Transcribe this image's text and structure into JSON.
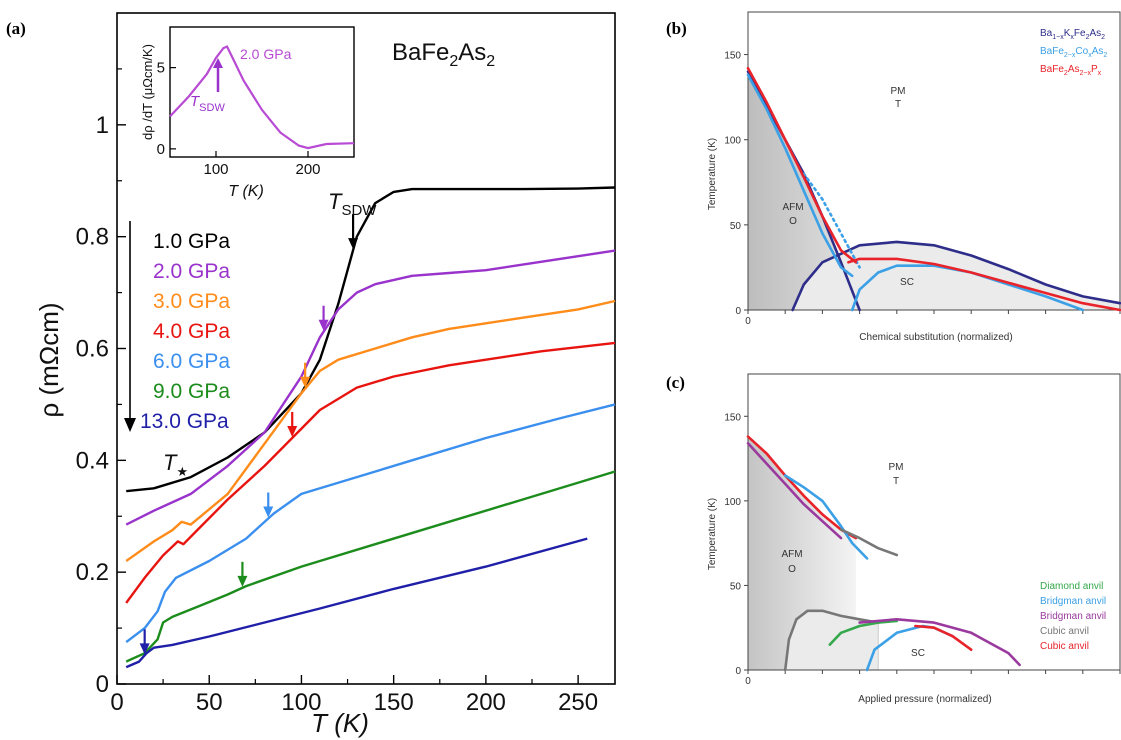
{
  "panels": [
    {
      "id": "a",
      "panel_label": "(a)",
      "compound": "BaFe₂As₂",
      "xlabel": "T (K)",
      "ylabel": "ρ (mΩcm)",
      "xticks": [
        "0",
        "50",
        "100",
        "150",
        "200",
        "250"
      ],
      "yticks": [
        "0",
        "0.2",
        "0.4",
        "0.6",
        "0.8",
        "1"
      ],
      "marker_tsdw": "T",
      "marker_tsdw_sub": "SDW",
      "marker_tstar": "T",
      "marker_tstar_sub": "★",
      "inset": {
        "ylabel": "dρ /dT (μΩcm/K)",
        "xlabel": "T (K)",
        "label": "2.0 GPa",
        "marker": "T",
        "marker_sub": "SDW",
        "xticks": [
          "100",
          "200"
        ],
        "yticks": [
          "0",
          "5"
        ]
      }
    },
    {
      "id": "b",
      "panel_label": "(b)",
      "xlabel": "Chemical substitution (normalized)",
      "ylabel": "Temperature (K)",
      "xticks": [
        "0"
      ],
      "yticks": [
        "0",
        "50",
        "100",
        "150"
      ],
      "labels": {
        "pm": "PM",
        "pm_sub": "T",
        "afm": "AFM",
        "afm_sub": "O",
        "sc": "SC"
      }
    },
    {
      "id": "c",
      "panel_label": "(c)",
      "xlabel": "Applied pressure (normalized)",
      "ylabel": "Temperature (K)",
      "xticks": [
        "0"
      ],
      "yticks": [
        "0",
        "50",
        "100",
        "150"
      ],
      "labels": {
        "pm": "PM",
        "pm_sub": "T",
        "afm": "AFM",
        "afm_sub": "O",
        "sc": "SC"
      }
    }
  ],
  "chart_data": [
    {
      "type": "line",
      "panel": "a",
      "xlim": [
        0,
        270
      ],
      "ylim": [
        0,
        1.2
      ],
      "series": [
        {
          "name": "1.0 GPa",
          "color": "#000000",
          "x": [
            5,
            20,
            40,
            60,
            80,
            100,
            110,
            120,
            130,
            140,
            150,
            160,
            180,
            200,
            220,
            250,
            270
          ],
          "y": [
            0.345,
            0.35,
            0.37,
            0.405,
            0.45,
            0.52,
            0.58,
            0.68,
            0.8,
            0.86,
            0.88,
            0.885,
            0.885,
            0.885,
            0.885,
            0.886,
            0.888
          ],
          "arrow_x": 128
        },
        {
          "name": "2.0 GPa",
          "color": "#9933cc",
          "x": [
            5,
            20,
            40,
            60,
            80,
            100,
            110,
            120,
            130,
            140,
            160,
            180,
            200,
            220,
            250,
            270
          ],
          "y": [
            0.285,
            0.31,
            0.34,
            0.39,
            0.45,
            0.55,
            0.62,
            0.67,
            0.7,
            0.715,
            0.73,
            0.735,
            0.74,
            0.75,
            0.765,
            0.775
          ],
          "arrow_x": 112
        },
        {
          "name": "3.0 GPa",
          "color": "#ff8c1a",
          "x": [
            5,
            20,
            30,
            35,
            40,
            60,
            80,
            100,
            110,
            120,
            140,
            160,
            180,
            200,
            220,
            250,
            270
          ],
          "y": [
            0.22,
            0.255,
            0.275,
            0.29,
            0.285,
            0.34,
            0.43,
            0.52,
            0.56,
            0.58,
            0.6,
            0.62,
            0.635,
            0.645,
            0.655,
            0.67,
            0.685
          ],
          "arrow_x": 102
        },
        {
          "name": "4.0 GPa",
          "color": "#e8140f",
          "x": [
            5,
            15,
            25,
            33,
            36,
            45,
            60,
            80,
            95,
            110,
            130,
            150,
            180,
            200,
            230,
            270
          ],
          "y": [
            0.145,
            0.19,
            0.23,
            0.255,
            0.25,
            0.28,
            0.33,
            0.39,
            0.44,
            0.49,
            0.53,
            0.55,
            0.57,
            0.58,
            0.595,
            0.61
          ],
          "arrow_x": 95
        },
        {
          "name": "6.0 GPa",
          "color": "#3b8fee",
          "x": [
            5,
            15,
            22,
            26,
            32,
            50,
            70,
            85,
            100,
            130,
            160,
            200,
            240,
            270
          ],
          "y": [
            0.075,
            0.1,
            0.13,
            0.165,
            0.19,
            0.22,
            0.26,
            0.305,
            0.34,
            0.37,
            0.4,
            0.44,
            0.475,
            0.5
          ],
          "arrow_x": 82
        },
        {
          "name": "9.0 GPa",
          "color": "#1c8c1c",
          "x": [
            5,
            15,
            22,
            25,
            30,
            45,
            60,
            70,
            100,
            140,
            180,
            220,
            270
          ],
          "y": [
            0.04,
            0.055,
            0.08,
            0.11,
            0.12,
            0.14,
            0.16,
            0.175,
            0.21,
            0.25,
            0.29,
            0.33,
            0.38
          ],
          "arrow_x": 68
        },
        {
          "name": "13.0 GPa",
          "color": "#1f1fa8",
          "x": [
            5,
            12,
            16,
            20,
            30,
            50,
            80,
            110,
            150,
            200,
            255
          ],
          "y": [
            0.03,
            0.04,
            0.055,
            0.065,
            0.07,
            0.085,
            0.11,
            0.135,
            0.17,
            0.21,
            0.26
          ],
          "arrow_x": 15
        }
      ]
    },
    {
      "type": "line",
      "panel": "a-inset",
      "xlim": [
        50,
        250
      ],
      "ylim": [
        -0.5,
        7.5
      ],
      "series": [
        {
          "name": "2.0 GPa",
          "color": "#b84ad4",
          "x": [
            50,
            70,
            90,
            100,
            108,
            112,
            118,
            130,
            150,
            170,
            190,
            200,
            220,
            250
          ],
          "y": [
            2.0,
            3.2,
            4.6,
            5.6,
            6.2,
            6.3,
            5.6,
            4.2,
            2.4,
            1.0,
            0.2,
            0.05,
            0.3,
            0.35
          ]
        }
      ]
    },
    {
      "type": "line",
      "panel": "b",
      "xlim": [
        0,
        1
      ],
      "ylim": [
        0,
        175
      ],
      "series": [
        {
          "name": "Ba₁₋ₓKₓFe₂As₂",
          "color": "#2e2e8a",
          "x": [
            0.0,
            0.05,
            0.1,
            0.15,
            0.2,
            0.25,
            0.3
          ],
          "y": [
            140,
            120,
            100,
            80,
            55,
            28,
            0
          ]
        },
        {
          "name": "Ba₁₋ₓKₓFe₂As₂",
          "color": "#2e2e8a",
          "x": [
            0.12,
            0.15,
            0.2,
            0.3,
            0.4,
            0.5,
            0.6,
            0.7,
            0.8,
            0.9,
            1.0
          ],
          "y": [
            0,
            15,
            28,
            38,
            40,
            38,
            32,
            24,
            15,
            8,
            4
          ]
        },
        {
          "name": "BaFe₂₋ₓCoₓAs₂",
          "color": "#3ba0e6",
          "x": [
            0.0,
            0.05,
            0.1,
            0.15,
            0.2,
            0.25,
            0.28
          ],
          "y": [
            138,
            118,
            95,
            70,
            45,
            25,
            20
          ]
        },
        {
          "name": "BaFe₂₋ₓCoₓAs₂",
          "color": "#3ba0e6",
          "x": [
            0.15,
            0.2,
            0.25,
            0.3
          ],
          "y": [
            80,
            65,
            45,
            25
          ]
        },
        {
          "name": "BaFe₂₋ₓCoₓAs₂",
          "color": "#3ba0e6",
          "x": [
            0.28,
            0.3,
            0.35,
            0.4,
            0.5,
            0.6,
            0.7,
            0.8,
            0.9
          ],
          "y": [
            0,
            12,
            22,
            26,
            26,
            22,
            15,
            8,
            0
          ]
        },
        {
          "name": "BaFe₂As₂₋ₓPₓ",
          "color": "#e8232a",
          "x": [
            0.0,
            0.05,
            0.1,
            0.15,
            0.2,
            0.25,
            0.29
          ],
          "y": [
            142,
            122,
            100,
            78,
            55,
            35,
            28
          ]
        },
        {
          "name": "BaFe₂As₂₋ₓPₓ",
          "color": "#e8232a",
          "x": [
            0.27,
            0.3,
            0.4,
            0.5,
            0.6,
            0.7,
            0.8,
            0.9,
            1.0
          ],
          "y": [
            28,
            30,
            30,
            27,
            22,
            16,
            10,
            4,
            0
          ]
        }
      ],
      "legend": [
        "Ba₁₋ₓKₓFe₂As₂",
        "BaFe₂₋ₓCoₓAs₂",
        "BaFe₂As₂₋ₓPₓ"
      ],
      "legend_colors": [
        "#2e2e8a",
        "#3ba0e6",
        "#e8232a"
      ]
    },
    {
      "type": "line",
      "panel": "c",
      "xlim": [
        0,
        1
      ],
      "ylim": [
        0,
        175
      ],
      "series": [
        {
          "name": "Cubic anvil",
          "color": "#e8232a",
          "x": [
            0.0,
            0.05,
            0.1,
            0.15,
            0.2,
            0.25,
            0.29
          ],
          "y": [
            138,
            128,
            115,
            103,
            92,
            83,
            78
          ]
        },
        {
          "name": "Bridgman anvil",
          "color": "#9a3a9e",
          "x": [
            0.0,
            0.05,
            0.1,
            0.15,
            0.2,
            0.25
          ],
          "y": [
            134,
            122,
            110,
            98,
            88,
            78
          ]
        },
        {
          "name": "Bridgman anvil",
          "color": "#3ba0e6",
          "x": [
            0.1,
            0.15,
            0.2,
            0.25,
            0.28,
            0.32
          ],
          "y": [
            115,
            108,
            100,
            85,
            75,
            66
          ]
        },
        {
          "name": "Cubic anvil",
          "color": "#777777",
          "x": [
            0.25,
            0.3,
            0.35,
            0.4
          ],
          "y": [
            83,
            78,
            72,
            68
          ]
        },
        {
          "name": "Cubic anvil",
          "color": "#777777",
          "x": [
            0.1,
            0.11,
            0.13,
            0.16,
            0.2,
            0.25,
            0.3,
            0.35
          ],
          "y": [
            0,
            18,
            30,
            35,
            35,
            32,
            30,
            28
          ]
        },
        {
          "name": "Diamond anvil",
          "color": "#34a84a",
          "x": [
            0.22,
            0.25,
            0.3,
            0.35,
            0.4
          ],
          "y": [
            15,
            22,
            26,
            28,
            29
          ]
        },
        {
          "name": "Bridgman anvil",
          "color": "#9a3a9e",
          "x": [
            0.3,
            0.4,
            0.5,
            0.6,
            0.7,
            0.73
          ],
          "y": [
            28,
            30,
            28,
            22,
            10,
            3
          ]
        },
        {
          "name": "Bridgman anvil",
          "color": "#3ba0e6",
          "x": [
            0.32,
            0.34,
            0.4,
            0.47,
            0.5,
            0.55
          ],
          "y": [
            0,
            12,
            22,
            26,
            25,
            20
          ]
        },
        {
          "name": "Cubic anvil",
          "color": "#e8232a",
          "x": [
            0.45,
            0.5,
            0.55,
            0.6
          ],
          "y": [
            26,
            25,
            20,
            12
          ]
        }
      ],
      "legend": [
        "Diamond anvil",
        "Bridgman anvil",
        "Bridgman anvil",
        "Cubic anvil",
        "Cubic anvil"
      ],
      "legend_colors": [
        "#34a84a",
        "#3ba0e6",
        "#9a3a9e",
        "#777777",
        "#e8232a"
      ]
    }
  ]
}
